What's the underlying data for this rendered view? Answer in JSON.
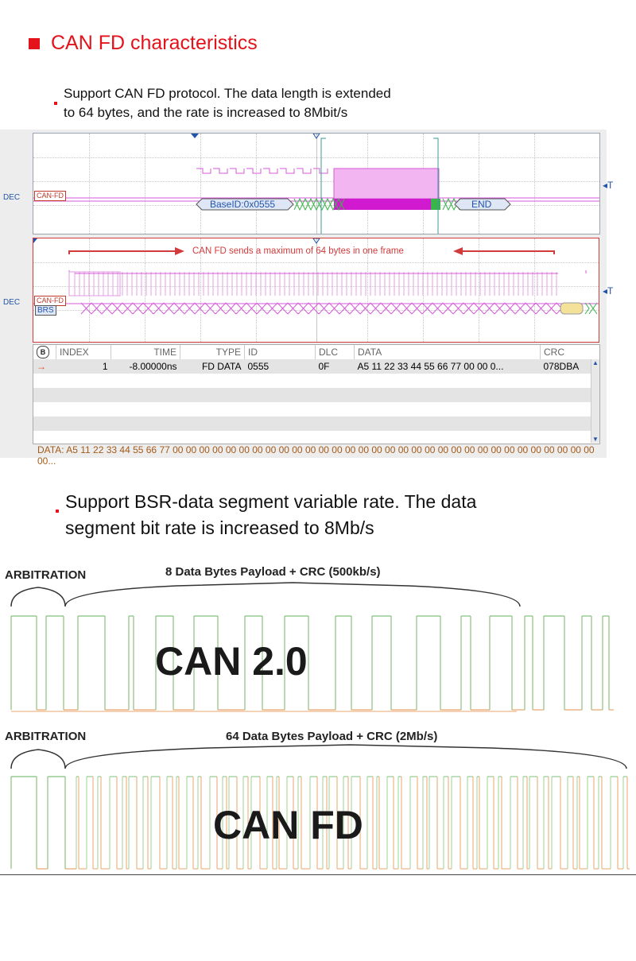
{
  "heading": {
    "title": "CAN FD characteristics"
  },
  "bullet1": {
    "line1": "Support CAN FD protocol. The data length is extended",
    "line2": "to 64 bytes, and the rate is increased to 8Mbit/s"
  },
  "scope": {
    "dec_label": "DEC",
    "tag_top": "CAN-FD",
    "tag_bottom": "CAN-FD",
    "brs_label": "BRS",
    "base_id": "BaseID:0x0555",
    "end_label": "END",
    "t_marker": "T",
    "annotation": "CAN FD sends a maximum of 64 bytes in one frame",
    "table": {
      "headers": [
        "INDEX",
        "TIME",
        "TYPE",
        "ID",
        "DLC",
        "DATA",
        "CRC"
      ],
      "row": {
        "index": "1",
        "time": "-8.00000ns",
        "type": "FD DATA",
        "id": "0555",
        "dlc": "0F",
        "data": "A5 11 22 33 44 55 66 77 00 00 0...",
        "crc": "078DBA"
      },
      "data_line": "DATA: A5 11 22 33 44 55 66 77 00 00 00 00 00 00 00 00 00 00 00 00 00 00 00 00 00 00 00 00 00 00 00 00 00 00 00 00 00 00 00 00 00..."
    }
  },
  "bullet2": {
    "line1": "Support BSR-data segment variable rate. The data",
    "line2": "segment bit rate is increased to 8Mb/s"
  },
  "compare": {
    "can20": {
      "arbitration": "ARBITRATION",
      "payload": "8 Data Bytes Payload + CRC (500kb/s)",
      "title": "CAN 2.0"
    },
    "canfd": {
      "arbitration": "ARBITRATION",
      "payload": "64 Data Bytes Payload + CRC (2Mb/s)",
      "title": "CAN FD"
    }
  },
  "colors": {
    "accent": "#e3121b",
    "trace_magenta": "#d65ad8",
    "wave_green": "#7fc27a",
    "wave_orange": "#e7a56e"
  }
}
